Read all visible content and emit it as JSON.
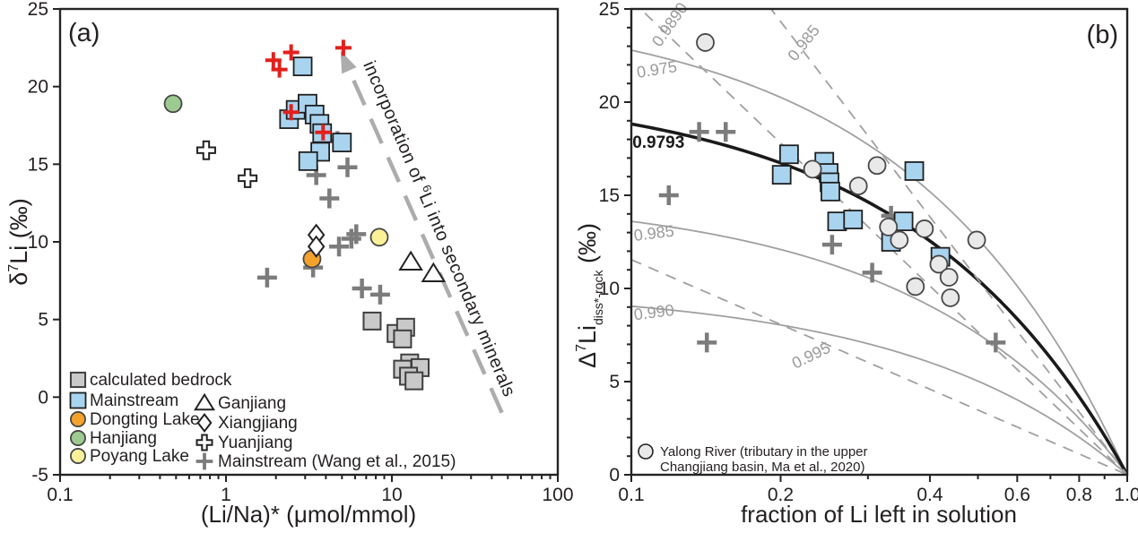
{
  "figure": {
    "panel_a": {
      "label": "(a)",
      "x_title": "(Li/Na)* (μmol/mmol)",
      "y_title": {
        "base": "δ",
        "sup": "7",
        "rest": "Li (‰)"
      },
      "annotation": {
        "part1": "incorporation of ",
        "sup": "6",
        "part2": "Li into secondary minerals"
      },
      "legend_items": [
        {
          "label": "calculated bedrock",
          "symbol": "square_gray",
          "col": 1
        },
        {
          "label": "Mainstream",
          "symbol": "square_blue",
          "col": 1
        },
        {
          "label": "Dongting Lake",
          "symbol": "circle_orange",
          "col": 1
        },
        {
          "label": "Hanjiang",
          "symbol": "circle_green",
          "col": 1
        },
        {
          "label": "Poyang Lake",
          "symbol": "circle_yellow",
          "col": 1
        },
        {
          "label": "Ganjiang",
          "symbol": "triangle",
          "col": 2
        },
        {
          "label": "Xiangjiang",
          "symbol": "diamond",
          "col": 2
        },
        {
          "label": "Yuanjiang",
          "symbol": "opencross",
          "col": 2
        },
        {
          "label": "Mainstream (Wang et al., 2015)",
          "symbol": "plus_gray",
          "col": 2
        }
      ]
    },
    "panel_b": {
      "label": "(b)",
      "x_title": "fraction of Li left in solution",
      "y_title": {
        "base": "Δ",
        "sup": "7",
        "mid": "Li",
        "sub": "diss*-rock",
        "rest": " (‰)"
      },
      "legend": {
        "line1": "Yalong River (tributary in the upper",
        "line2": "Changjiang basin, Ma et al., 2020)"
      }
    }
  },
  "colors": {
    "blue": "#A9D4F0",
    "gray_fill": "#C9C9C9",
    "orange": "#F5A22C",
    "green": "#9CCA90",
    "yellow": "#FAF098",
    "circle_b": "#E9E9E9",
    "plus_gray": "#7C7C7C",
    "plus_red": "#E2201C",
    "edge_dark": "#1F1F1F",
    "edge_gray": "#3F3F3F",
    "curve_gray": "#A0A0A0",
    "curve_black": "#1A1A1A",
    "arrow_gray": "#ACACAC",
    "white": "#FFFFFF"
  },
  "chart_data": [
    {
      "panel": "a",
      "type": "scatter",
      "x_scale": "log",
      "xlim": [
        0.1,
        100
      ],
      "ylim": [
        -5,
        25
      ],
      "xlabel": "(Li/Na)* (μmol/mmol)",
      "ylabel": "δ7Li (‰)",
      "xticks": [
        {
          "v": 0.1,
          "label": "0.1"
        },
        {
          "v": 1,
          "label": "1"
        },
        {
          "v": 10,
          "label": "10"
        },
        {
          "v": 100,
          "label": "100"
        }
      ],
      "yticks": [
        {
          "v": -5,
          "label": "-5"
        },
        {
          "v": 0,
          "label": "0"
        },
        {
          "v": 5,
          "label": "5"
        },
        {
          "v": 10,
          "label": "10"
        },
        {
          "v": 15,
          "label": "15"
        },
        {
          "v": 20,
          "label": "20"
        },
        {
          "v": 25,
          "label": "25"
        }
      ],
      "annotation_arrow": {
        "from": [
          46,
          -1.0
        ],
        "to": [
          4.9,
          22.3
        ],
        "text": "incorporation of 6Li into secondary minerals"
      },
      "series": [
        {
          "name": "Mainstream (Wang et al., 2015)",
          "symbol": "plus_gray",
          "points": [
            [
              4.7,
              16.5
            ],
            [
              5.4,
              14.8
            ],
            [
              3.5,
              14.3
            ],
            [
              4.2,
              12.8
            ],
            [
              1.77,
              7.7
            ],
            [
              3.35,
              8.35
            ],
            [
              4.8,
              9.7
            ],
            [
              5.7,
              10.2
            ],
            [
              6.1,
              10.5
            ],
            [
              6.6,
              7.0
            ],
            [
              8.5,
              6.6
            ]
          ]
        },
        {
          "name": "calculated bedrock",
          "symbol": "square_gray",
          "points": [
            [
              7.6,
              4.9
            ],
            [
              10.6,
              4.1
            ],
            [
              12.1,
              4.5
            ],
            [
              11.6,
              3.75
            ],
            [
              12.8,
              2.2
            ],
            [
              14.8,
              1.9
            ],
            [
              11.6,
              1.8
            ],
            [
              12.6,
              1.35
            ],
            [
              13.6,
              1.05
            ]
          ]
        },
        {
          "name": "Dongting Lake",
          "symbol": "circle_orange",
          "points": [
            [
              3.3,
              8.9
            ]
          ]
        },
        {
          "name": "Hanjiang",
          "symbol": "circle_green",
          "points": [
            [
              0.48,
              18.9
            ]
          ]
        },
        {
          "name": "Poyang Lake",
          "symbol": "circle_yellow",
          "points": [
            [
              8.4,
              10.3
            ]
          ]
        },
        {
          "name": "Ganjiang",
          "symbol": "triangle",
          "points": [
            [
              13.0,
              8.7
            ],
            [
              17.8,
              7.95
            ]
          ]
        },
        {
          "name": "Xiangjiang",
          "symbol": "diamond",
          "points": [
            [
              3.5,
              10.45
            ],
            [
              3.5,
              9.7
            ]
          ]
        },
        {
          "name": "Yuanjiang",
          "symbol": "opencross",
          "points": [
            [
              0.76,
              15.9
            ],
            [
              1.35,
              14.1
            ]
          ]
        },
        {
          "name": "Mainstream",
          "symbol": "square_blue",
          "points": [
            [
              2.9,
              21.3
            ],
            [
              2.4,
              17.9
            ],
            [
              2.63,
              18.5
            ],
            [
              3.1,
              18.9
            ],
            [
              3.42,
              18.2
            ],
            [
              3.66,
              17.6
            ],
            [
              3.8,
              17.0
            ],
            [
              5.0,
              16.4
            ],
            [
              3.7,
              15.8
            ],
            [
              3.13,
              15.2
            ]
          ]
        },
        {
          "name": "red crosses (unlabeled)",
          "symbol": "plus_red",
          "points": [
            [
              1.93,
              21.7
            ],
            [
              2.1,
              21.1
            ],
            [
              2.47,
              22.2
            ],
            [
              5.1,
              22.5
            ],
            [
              2.47,
              18.35
            ],
            [
              3.85,
              17.05
            ]
          ]
        }
      ]
    },
    {
      "panel": "b",
      "type": "scatter",
      "x_scale": "log",
      "xlim": [
        0.1,
        1.0
      ],
      "ylim": [
        0,
        25
      ],
      "xlabel": "fraction of Li left in solution",
      "ylabel": "Δ7Li diss*-rock (‰)",
      "xticks": [
        {
          "v": 0.1,
          "label": "0.1"
        },
        {
          "v": 0.2,
          "label": "0.2"
        },
        {
          "v": 0.4,
          "label": "0.4"
        },
        {
          "v": 0.6,
          "label": "0.6"
        },
        {
          "v": 0.8,
          "label": "0.8"
        },
        {
          "v": 1.0,
          "label": "1.0"
        }
      ],
      "x_minor_ticks": [
        0.3,
        0.5,
        0.7,
        0.9
      ],
      "yticks": [
        {
          "v": 0,
          "label": "0"
        },
        {
          "v": 5,
          "label": "5"
        },
        {
          "v": 10,
          "label": "10"
        },
        {
          "v": 15,
          "label": "15"
        },
        {
          "v": 20,
          "label": "20"
        },
        {
          "v": 25,
          "label": "25"
        }
      ],
      "curves": [
        {
          "model": "batch",
          "alpha": 0.975,
          "style": "solid"
        },
        {
          "model": "batch",
          "alpha": 0.985,
          "style": "solid"
        },
        {
          "model": "batch",
          "alpha": 0.99,
          "style": "solid"
        },
        {
          "model": "batch",
          "alpha": 0.9793,
          "style": "solid-bold"
        },
        {
          "model": "rayleigh",
          "alpha": 0.989,
          "style": "dashed"
        },
        {
          "model": "rayleigh",
          "alpha": 0.985,
          "style": "dashed"
        },
        {
          "model": "rayleigh",
          "alpha": 0.995,
          "style": "dashed"
        }
      ],
      "curve_labels": [
        {
          "text": "0.9890",
          "f": 0.122,
          "d": 24.0,
          "rot": -55,
          "anchor": "middle",
          "bold": false
        },
        {
          "text": "0.975",
          "f": 0.103,
          "d": 21.3,
          "rot": -9,
          "anchor": "start",
          "bold": false
        },
        {
          "text": "0.985",
          "f": 0.227,
          "d": 23.0,
          "rot": -52,
          "anchor": "middle",
          "bold": false
        },
        {
          "text": "0.9793",
          "f": 0.1005,
          "d": 17.55,
          "rot": 0,
          "anchor": "start",
          "bold": true
        },
        {
          "text": "0.985",
          "f": 0.1015,
          "d": 12.55,
          "rot": -7,
          "anchor": "start",
          "bold": false
        },
        {
          "text": "0.990",
          "f": 0.1015,
          "d": 8.3,
          "rot": -7,
          "anchor": "start",
          "bold": false
        },
        {
          "text": "0.995",
          "f": 0.233,
          "d": 6.15,
          "rot": -26,
          "anchor": "middle",
          "bold": false
        }
      ],
      "series": [
        {
          "name": "Mainstream (Wang et al., 2015)",
          "symbol": "plus_gray",
          "points": [
            [
              0.137,
              18.4
            ],
            [
              0.155,
              18.4
            ],
            [
              0.119,
              15.0
            ],
            [
              0.254,
              12.35
            ],
            [
              0.306,
              10.85
            ],
            [
              0.334,
              13.9
            ],
            [
              0.543,
              7.1
            ],
            [
              0.142,
              7.1
            ]
          ]
        },
        {
          "name": "Mainstream",
          "symbol": "square_blue",
          "points": [
            [
              0.208,
              17.2
            ],
            [
              0.201,
              16.1
            ],
            [
              0.245,
              16.8
            ],
            [
              0.25,
              16.2
            ],
            [
              0.251,
              15.7
            ],
            [
              0.252,
              15.2
            ],
            [
              0.26,
              13.6
            ],
            [
              0.28,
              13.7
            ],
            [
              0.354,
              13.6
            ],
            [
              0.334,
              12.5
            ],
            [
              0.372,
              16.3
            ],
            [
              0.42,
              11.7
            ]
          ]
        },
        {
          "name": "Yalong River (tributary in the upper Changjiang basin, Ma et al., 2020)",
          "symbol": "circle_gray",
          "points": [
            [
              0.141,
              23.2
            ],
            [
              0.232,
              16.4
            ],
            [
              0.287,
              15.5
            ],
            [
              0.313,
              16.6
            ],
            [
              0.33,
              13.3
            ],
            [
              0.347,
              12.6
            ],
            [
              0.39,
              13.2
            ],
            [
              0.417,
              11.3
            ],
            [
              0.437,
              10.6
            ],
            [
              0.44,
              9.5
            ],
            [
              0.374,
              10.1
            ],
            [
              0.497,
              12.6
            ]
          ]
        }
      ]
    }
  ]
}
